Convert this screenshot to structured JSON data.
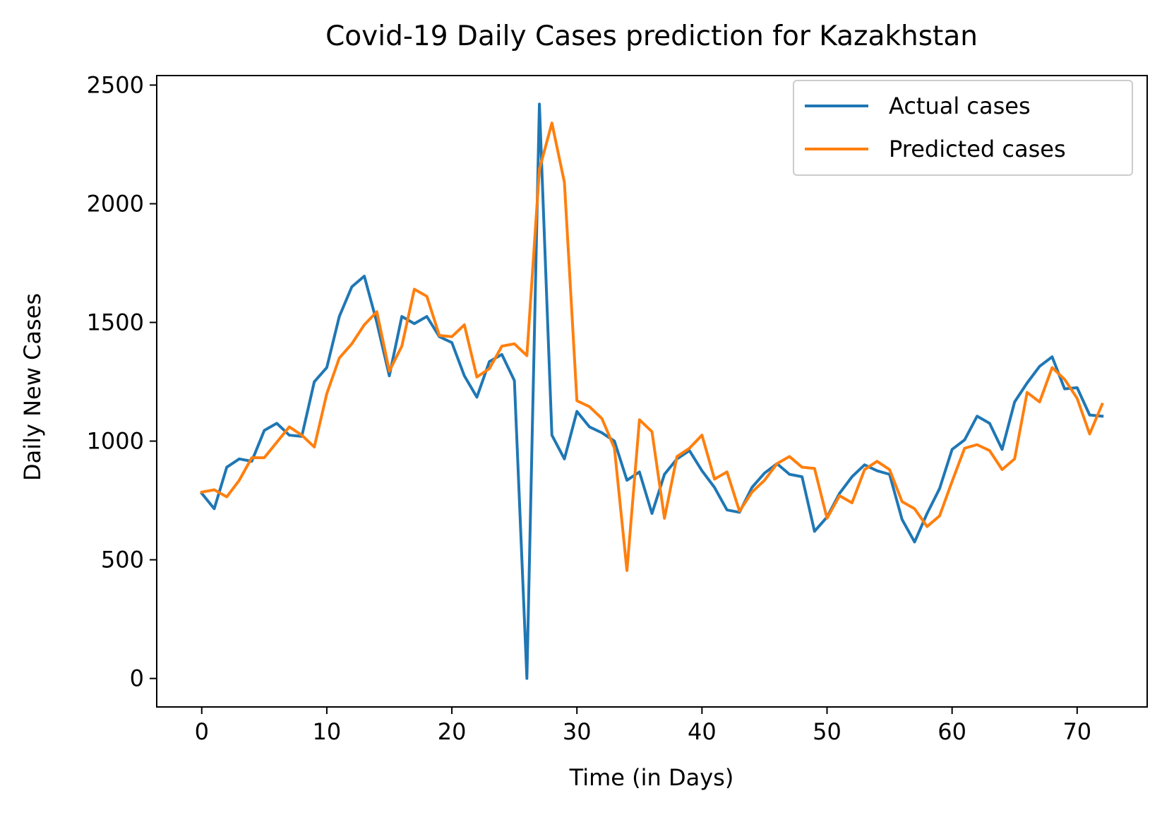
{
  "chart_data": {
    "type": "line",
    "title": "Covid-19 Daily Cases prediction for Kazakhstan",
    "xlabel": "Time (in Days)",
    "ylabel": "Daily New Cases",
    "xlim": [
      -3.6,
      75.6
    ],
    "ylim": [
      -120,
      2540
    ],
    "xticks": [
      0,
      10,
      20,
      30,
      40,
      50,
      60,
      70
    ],
    "yticks": [
      0,
      500,
      1000,
      1500,
      2000,
      2500
    ],
    "grid": false,
    "legend_position": "top-right",
    "x": [
      0,
      1,
      2,
      3,
      4,
      5,
      6,
      7,
      8,
      9,
      10,
      11,
      12,
      13,
      14,
      15,
      16,
      17,
      18,
      19,
      20,
      21,
      22,
      23,
      24,
      25,
      26,
      27,
      28,
      29,
      30,
      31,
      32,
      33,
      34,
      35,
      36,
      37,
      38,
      39,
      40,
      41,
      42,
      43,
      44,
      45,
      46,
      47,
      48,
      49,
      50,
      51,
      52,
      53,
      54,
      55,
      56,
      57,
      58,
      59,
      60,
      61,
      62,
      63,
      64,
      65,
      66,
      67,
      68,
      69,
      70,
      71,
      72
    ],
    "series": [
      {
        "name": "Actual cases",
        "color": "#1f77b4",
        "values": [
          780,
          715,
          890,
          925,
          915,
          1045,
          1075,
          1025,
          1020,
          1250,
          1310,
          1525,
          1650,
          1695,
          1500,
          1275,
          1525,
          1495,
          1525,
          1440,
          1415,
          1275,
          1185,
          1335,
          1365,
          1255,
          0,
          2420,
          1025,
          925,
          1125,
          1060,
          1035,
          1000,
          835,
          870,
          695,
          860,
          925,
          960,
          875,
          805,
          710,
          700,
          805,
          865,
          905,
          860,
          850,
          620,
          680,
          780,
          850,
          900,
          875,
          860,
          670,
          575,
          695,
          800,
          965,
          1005,
          1105,
          1075,
          965,
          1165,
          1245,
          1315,
          1355,
          1220,
          1225,
          1110,
          1105
        ]
      },
      {
        "name": "Predicted cases",
        "color": "#ff7f0e",
        "values": [
          785,
          795,
          765,
          835,
          930,
          930,
          995,
          1060,
          1025,
          975,
          1200,
          1350,
          1410,
          1490,
          1545,
          1295,
          1400,
          1640,
          1610,
          1445,
          1440,
          1490,
          1270,
          1305,
          1400,
          1410,
          1360,
          2145,
          2340,
          2090,
          1170,
          1145,
          1095,
          970,
          455,
          1090,
          1040,
          675,
          935,
          970,
          1025,
          840,
          870,
          705,
          785,
          835,
          905,
          935,
          890,
          885,
          675,
          770,
          740,
          880,
          915,
          880,
          745,
          715,
          640,
          685,
          830,
          970,
          985,
          960,
          880,
          925,
          1205,
          1165,
          1310,
          1260,
          1180,
          1030,
          1155
        ]
      }
    ]
  }
}
